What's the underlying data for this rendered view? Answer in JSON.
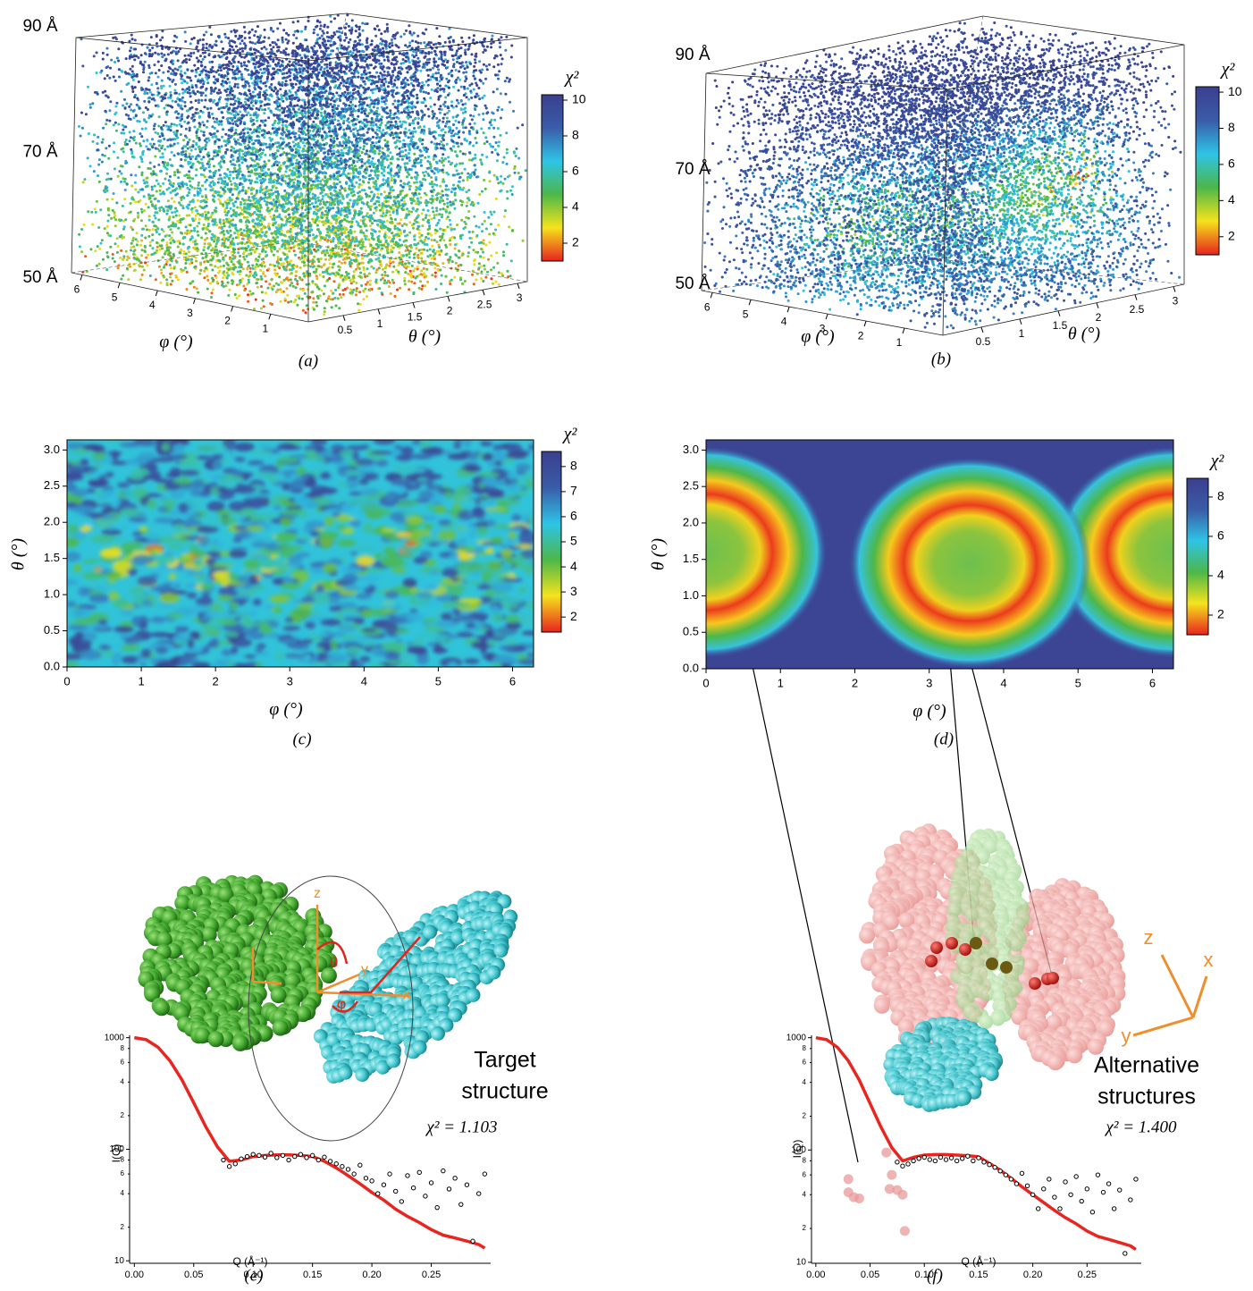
{
  "chart_data": [
    {
      "type": "scatter3d",
      "caption": "(a)",
      "xlabel": "φ (°)",
      "ylabel": "θ (°)",
      "xlim": [
        0,
        6.283
      ],
      "ylim": [
        0,
        3.14
      ],
      "zlim": [
        50,
        90
      ],
      "xticks": [
        1,
        2,
        3,
        4,
        5,
        6
      ],
      "yticks": [
        0.5,
        1,
        1.5,
        2,
        2.5,
        3
      ],
      "zticks": [
        {
          "value": 50,
          "label": "50 Å"
        },
        {
          "value": 70,
          "label": "70 Å"
        },
        {
          "value": 90,
          "label": "90 Å"
        }
      ],
      "colormap": [
        "#e8231e",
        "#f5e31c",
        "#4cb749",
        "#2ec4e6",
        "#3a5ca8",
        "#3b3f8e"
      ],
      "colorbar": {
        "title": "χ²",
        "lim": [
          1,
          10.3
        ],
        "ticks": [
          2,
          4,
          6,
          8,
          10
        ]
      }
    },
    {
      "type": "scatter3d",
      "caption": "(b)",
      "xlabel": "φ (°)",
      "ylabel": "θ (°)",
      "xlim": [
        0,
        6.283
      ],
      "ylim": [
        0,
        3.14
      ],
      "zlim": [
        50,
        90
      ],
      "xticks": [
        1,
        2,
        3,
        4,
        5,
        6
      ],
      "yticks": [
        0.5,
        1,
        1.5,
        2,
        2.5,
        3
      ],
      "zticks": [
        {
          "value": 50,
          "label": "50 Å"
        },
        {
          "value": 70,
          "label": "70 Å"
        },
        {
          "value": 90,
          "label": "90 Å"
        }
      ],
      "colormap": [
        "#e8231e",
        "#f5e31c",
        "#4cb749",
        "#2ec4e6",
        "#3a5ca8",
        "#3b3f8e"
      ],
      "colorbar": {
        "title": "χ²",
        "lim": [
          1,
          10.3
        ],
        "ticks": [
          2,
          4,
          6,
          8,
          10
        ]
      }
    },
    {
      "type": "heatmap",
      "caption": "(c)",
      "xlabel": "φ (°)",
      "ylabel": "θ (°)",
      "xlim": [
        0,
        6.283
      ],
      "ylim": [
        0,
        3.14
      ],
      "xticks": [
        0,
        1,
        2,
        3,
        4,
        5,
        6
      ],
      "yticks": [
        {
          "value": 0,
          "label": "0.0"
        },
        0.5,
        {
          "value": 1,
          "label": "1.0"
        },
        1.5,
        {
          "value": 2,
          "label": "2.0"
        },
        2.5,
        {
          "value": 3,
          "label": "3.0"
        }
      ],
      "colormap": [
        "#e8231e",
        "#f5e31c",
        "#4cb749",
        "#2ec4e6",
        "#3a5ca8",
        "#3b3f8e"
      ],
      "colorbar": {
        "title": "χ²",
        "lim": [
          1.4,
          8.6
        ],
        "ticks": [
          2,
          3,
          4,
          5,
          6,
          7,
          8
        ]
      }
    },
    {
      "type": "heatmap",
      "caption": "(d)",
      "xlabel": "φ (°)",
      "ylabel": "θ (°)",
      "xlim": [
        0,
        6.283
      ],
      "ylim": [
        0,
        3.14
      ],
      "xticks": [
        0,
        1,
        2,
        3,
        4,
        5,
        6
      ],
      "yticks": [
        {
          "value": 0,
          "label": "0.0"
        },
        0.5,
        {
          "value": 1,
          "label": "1.0"
        },
        1.5,
        {
          "value": 2,
          "label": "2.0"
        },
        2.5,
        {
          "value": 3,
          "label": "3.0"
        }
      ],
      "colormap": [
        "#e8231e",
        "#f5e31c",
        "#4cb749",
        "#2ec4e6",
        "#3a5ca8",
        "#3b3f8e"
      ],
      "colorbar": {
        "title": "χ²",
        "lim": [
          1,
          8.95
        ],
        "ticks": [
          2,
          4,
          6,
          8
        ]
      }
    },
    {
      "type": "line",
      "caption": "(e)",
      "xlabel": "Q (Å⁻¹)",
      "ylabel": "I(Q)",
      "log_y": true,
      "xlim": [
        -0.004,
        0.3
      ],
      "ylim": [
        9.5,
        1050
      ],
      "xticks": [
        {
          "value": 0,
          "label": "0.00"
        },
        0.05,
        {
          "value": 0.1,
          "label": "0.10"
        },
        0.15,
        {
          "value": 0.2,
          "label": "0.20"
        },
        0.25
      ],
      "yticks": [
        10,
        {
          "value": 20,
          "label": "2"
        },
        {
          "value": 40,
          "label": "4"
        },
        {
          "value": 60,
          "label": "6"
        },
        {
          "value": 80,
          "label": "8"
        },
        100,
        {
          "value": 200,
          "label": "2"
        },
        {
          "value": 400,
          "label": "4"
        },
        {
          "value": 600,
          "label": "6"
        },
        {
          "value": 800,
          "label": "8"
        },
        1000
      ],
      "series": [
        {
          "style": "line",
          "color": "#e8251f",
          "x": [
            0,
            0.01,
            0.02,
            0.03,
            0.04,
            0.05,
            0.06,
            0.07,
            0.08,
            0.09,
            0.1,
            0.11,
            0.12,
            0.13,
            0.14,
            0.15,
            0.16,
            0.17,
            0.18,
            0.19,
            0.2,
            0.21,
            0.22,
            0.23,
            0.24,
            0.25,
            0.26,
            0.27,
            0.28,
            0.29,
            0.295
          ],
          "values": [
            1000,
            960,
            820,
            620,
            420,
            260,
            160,
            105,
            78,
            80,
            86,
            88,
            89,
            89,
            88,
            86,
            78,
            68,
            58,
            49,
            41,
            35,
            29,
            25,
            22,
            19,
            17,
            16,
            15,
            14,
            13
          ]
        },
        {
          "style": "points",
          "color": "#000000",
          "x": [
            0.075,
            0.08,
            0.085,
            0.09,
            0.095,
            0.1,
            0.105,
            0.11,
            0.115,
            0.12,
            0.125,
            0.13,
            0.135,
            0.14,
            0.145,
            0.15,
            0.155,
            0.16,
            0.165,
            0.17,
            0.175,
            0.18,
            0.185,
            0.19,
            0.195,
            0.2,
            0.205,
            0.21,
            0.215,
            0.22,
            0.225,
            0.23,
            0.235,
            0.24,
            0.245,
            0.25,
            0.255,
            0.26,
            0.265,
            0.27,
            0.275,
            0.28,
            0.285,
            0.29,
            0.295
          ],
          "values": [
            80,
            70,
            74,
            82,
            86,
            90,
            88,
            85,
            92,
            84,
            88,
            80,
            86,
            90,
            84,
            88,
            80,
            85,
            78,
            74,
            70,
            66,
            60,
            72,
            55,
            52,
            40,
            48,
            60,
            42,
            34,
            58,
            45,
            62,
            38,
            50,
            30,
            64,
            44,
            55,
            32,
            48,
            15,
            40,
            60
          ]
        }
      ],
      "annotations": [
        {
          "text": "χ² = 1.103"
        },
        {
          "lines": [
            "Target",
            "structure"
          ]
        }
      ],
      "axis_glyphs": [
        "z",
        "y",
        "x",
        "θ",
        "φ"
      ]
    },
    {
      "type": "line",
      "caption": "(f)",
      "xlabel": "Q (Å⁻¹)",
      "ylabel": "I(Q)",
      "log_y": true,
      "xlim": [
        -0.004,
        0.3
      ],
      "ylim": [
        9.8,
        1050
      ],
      "xticks": [
        {
          "value": 0,
          "label": "0.00"
        },
        0.05,
        {
          "value": 0.1,
          "label": "0.10"
        },
        0.15,
        {
          "value": 0.2,
          "label": "0.20"
        },
        0.25
      ],
      "yticks": [
        10,
        {
          "value": 20,
          "label": "2"
        },
        {
          "value": 40,
          "label": "4"
        },
        {
          "value": 60,
          "label": "6"
        },
        {
          "value": 80,
          "label": "8"
        },
        100,
        {
          "value": 200,
          "label": "2"
        },
        {
          "value": 400,
          "label": "4"
        },
        {
          "value": 600,
          "label": "6"
        },
        {
          "value": 800,
          "label": "8"
        },
        1000
      ],
      "series": [
        {
          "style": "line",
          "color": "#e8251f",
          "x": [
            0,
            0.01,
            0.02,
            0.03,
            0.04,
            0.05,
            0.06,
            0.07,
            0.08,
            0.09,
            0.1,
            0.11,
            0.12,
            0.13,
            0.14,
            0.15,
            0.16,
            0.17,
            0.18,
            0.19,
            0.2,
            0.21,
            0.22,
            0.23,
            0.24,
            0.25,
            0.26,
            0.27,
            0.28,
            0.29,
            0.295
          ],
          "values": [
            1000,
            960,
            820,
            620,
            420,
            260,
            160,
            105,
            80,
            86,
            90,
            91,
            91,
            90,
            89,
            87,
            76,
            66,
            56,
            47,
            40,
            34,
            29,
            25,
            22,
            19,
            17,
            16,
            15,
            14,
            13
          ]
        },
        {
          "style": "points",
          "color": "#000000",
          "x": [
            0.075,
            0.08,
            0.085,
            0.09,
            0.095,
            0.1,
            0.105,
            0.11,
            0.115,
            0.12,
            0.125,
            0.13,
            0.135,
            0.14,
            0.145,
            0.15,
            0.155,
            0.16,
            0.165,
            0.17,
            0.175,
            0.18,
            0.185,
            0.19,
            0.195,
            0.2,
            0.205,
            0.21,
            0.215,
            0.22,
            0.225,
            0.23,
            0.235,
            0.24,
            0.245,
            0.25,
            0.255,
            0.26,
            0.265,
            0.27,
            0.275,
            0.28,
            0.285,
            0.29,
            0.295
          ],
          "values": [
            78,
            72,
            75,
            80,
            84,
            86,
            82,
            80,
            86,
            82,
            85,
            80,
            84,
            88,
            80,
            85,
            78,
            74,
            70,
            65,
            60,
            55,
            50,
            62,
            48,
            40,
            30,
            45,
            55,
            38,
            30,
            52,
            40,
            58,
            35,
            45,
            28,
            60,
            42,
            50,
            30,
            44,
            12,
            36,
            55
          ]
        },
        {
          "style": "spheres",
          "color": "#e89a9a",
          "x": [
            0.03,
            0.03,
            0.035,
            0.04,
            0.065,
            0.07,
            0.068,
            0.075,
            0.08,
            0.082
          ],
          "values": [
            55,
            42,
            38,
            37,
            95,
            60,
            45,
            44,
            40,
            19
          ]
        }
      ],
      "annotations": [
        {
          "text": "χ² = 1.400"
        },
        {
          "lines": [
            "Alternative",
            "structures"
          ]
        }
      ],
      "axis_glyphs": [
        "z",
        "x",
        "y"
      ]
    }
  ]
}
